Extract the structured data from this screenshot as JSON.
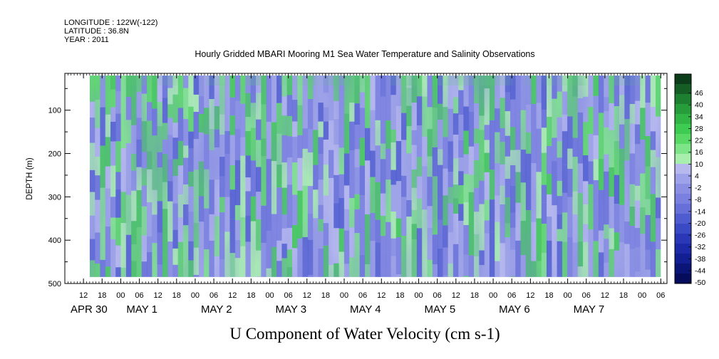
{
  "header": {
    "longitude": "LONGITUDE : 122W(-122)",
    "latitude": "LATITUDE : 36.8N",
    "year": "YEAR : 2011"
  },
  "chart_data": {
    "type": "heatmap",
    "title": "Hourly Gridded MBARI Mooring M1 Sea Water Temperature and Salinity Observations",
    "xlabel": "U Component of Water Velocity (cm s-1)",
    "ylabel": "DEPTH (m)",
    "y_reversed": true,
    "ylim": [
      500,
      15
    ],
    "y_tick_values": [
      100,
      200,
      300,
      400,
      500
    ],
    "y_tick_labels": [
      "100",
      "200",
      "300",
      "400",
      "500"
    ],
    "x_range_hours": [
      -12,
      182
    ],
    "x_hour_labels": [
      {
        "h": -6,
        "label": "12"
      },
      {
        "h": 0,
        "label": "18"
      },
      {
        "h": 6,
        "label": "00"
      },
      {
        "h": 12,
        "label": "06"
      },
      {
        "h": 18,
        "label": "12"
      },
      {
        "h": 24,
        "label": "18"
      },
      {
        "h": 30,
        "label": "00"
      },
      {
        "h": 36,
        "label": "06"
      },
      {
        "h": 42,
        "label": "12"
      },
      {
        "h": 48,
        "label": "18"
      },
      {
        "h": 54,
        "label": "00"
      },
      {
        "h": 60,
        "label": "06"
      },
      {
        "h": 66,
        "label": "12"
      },
      {
        "h": 72,
        "label": "18"
      },
      {
        "h": 78,
        "label": "00"
      },
      {
        "h": 84,
        "label": "06"
      },
      {
        "h": 90,
        "label": "12"
      },
      {
        "h": 96,
        "label": "18"
      },
      {
        "h": 102,
        "label": "00"
      },
      {
        "h": 108,
        "label": "06"
      },
      {
        "h": 114,
        "label": "12"
      },
      {
        "h": 120,
        "label": "18"
      },
      {
        "h": 126,
        "label": "00"
      },
      {
        "h": 132,
        "label": "06"
      },
      {
        "h": 138,
        "label": "12"
      },
      {
        "h": 144,
        "label": "18"
      },
      {
        "h": 150,
        "label": "00"
      },
      {
        "h": 156,
        "label": "06"
      },
      {
        "h": 162,
        "label": "12"
      },
      {
        "h": 168,
        "label": "18"
      },
      {
        "h": 174,
        "label": "00"
      },
      {
        "h": 180,
        "label": "06"
      }
    ],
    "x_day_labels": [
      {
        "h": -12,
        "label": "APR 30"
      },
      {
        "h": 6,
        "label": "MAY  1"
      },
      {
        "h": 30,
        "label": "MAY  2"
      },
      {
        "h": 54,
        "label": "MAY  3"
      },
      {
        "h": 78,
        "label": "MAY  4"
      },
      {
        "h": 102,
        "label": "MAY  5"
      },
      {
        "h": 126,
        "label": "MAY  6"
      },
      {
        "h": 150,
        "label": "MAY  7"
      }
    ],
    "data_hours": [
      -4,
      180
    ],
    "data_depth": [
      20,
      485
    ],
    "colorbar": {
      "labels": [
        "46",
        "40",
        "34",
        "28",
        "22",
        "16",
        "10",
        "4",
        "-2",
        "-8",
        "-14",
        "-20",
        "-26",
        "-32",
        "-38",
        "-44",
        "-50"
      ],
      "colors": [
        "#0b3d1a",
        "#145e26",
        "#1d7f30",
        "#279c3a",
        "#31b545",
        "#3ecb52",
        "#58d965",
        "#7de588",
        "#a8efae",
        "#b6b8ee",
        "#9ea2e8",
        "#8a8fe3",
        "#7a80df",
        "#6670d8",
        "#4f5ccf",
        "#3a49c4",
        "#2a38b8",
        "#1c2aa8",
        "#121f92",
        "#0b1578",
        "#050c5c"
      ]
    },
    "grid": false,
    "legend_placement": "right"
  }
}
